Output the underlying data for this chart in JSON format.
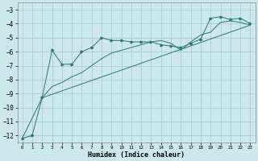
{
  "xlabel": "Humidex (Indice chaleur)",
  "xlim": [
    -0.5,
    23.5
  ],
  "ylim": [
    -12.5,
    -2.5
  ],
  "yticks": [
    -12,
    -11,
    -10,
    -9,
    -8,
    -7,
    -6,
    -5,
    -4,
    -3
  ],
  "xticks": [
    0,
    1,
    2,
    3,
    4,
    5,
    6,
    7,
    8,
    9,
    10,
    11,
    12,
    13,
    14,
    15,
    16,
    17,
    18,
    19,
    20,
    21,
    22,
    23
  ],
  "bg_color": "#cce8e8",
  "grid_color": "#aacfcf",
  "line_color": "#2a7a6a",
  "line1_x": [
    0,
    1,
    2,
    3,
    4,
    5,
    6,
    7,
    8,
    9,
    10,
    11,
    12,
    13,
    14,
    15,
    16,
    17,
    18,
    19,
    20,
    21,
    22,
    23
  ],
  "line1_y": [
    -12.2,
    -12.0,
    -9.3,
    -5.9,
    -6.9,
    -6.9,
    -6.0,
    -5.7,
    -5.0,
    -5.2,
    -5.2,
    -5.3,
    -5.3,
    -5.3,
    -5.5,
    -5.6,
    -5.7,
    -5.4,
    -5.1,
    -3.6,
    -3.5,
    -3.7,
    -3.6,
    -4.0
  ],
  "line2_x": [
    0,
    2,
    3,
    4,
    5,
    6,
    7,
    8,
    9,
    10,
    11,
    12,
    13,
    14,
    15,
    16,
    17,
    18,
    19,
    20,
    21,
    22,
    23
  ],
  "line2_y": [
    -12.2,
    -9.3,
    -8.5,
    -8.2,
    -7.8,
    -7.5,
    -7.0,
    -6.5,
    -6.1,
    -5.9,
    -5.7,
    -5.5,
    -5.3,
    -5.2,
    -5.4,
    -5.9,
    -5.3,
    -4.8,
    -4.6,
    -3.9,
    -3.8,
    -3.9,
    -4.1
  ],
  "line3_x": [
    2,
    23
  ],
  "line3_y": [
    -9.3,
    -4.1
  ],
  "ytick_fontsize": 5.5,
  "xtick_fontsize": 4.2,
  "xlabel_fontsize": 6.0
}
